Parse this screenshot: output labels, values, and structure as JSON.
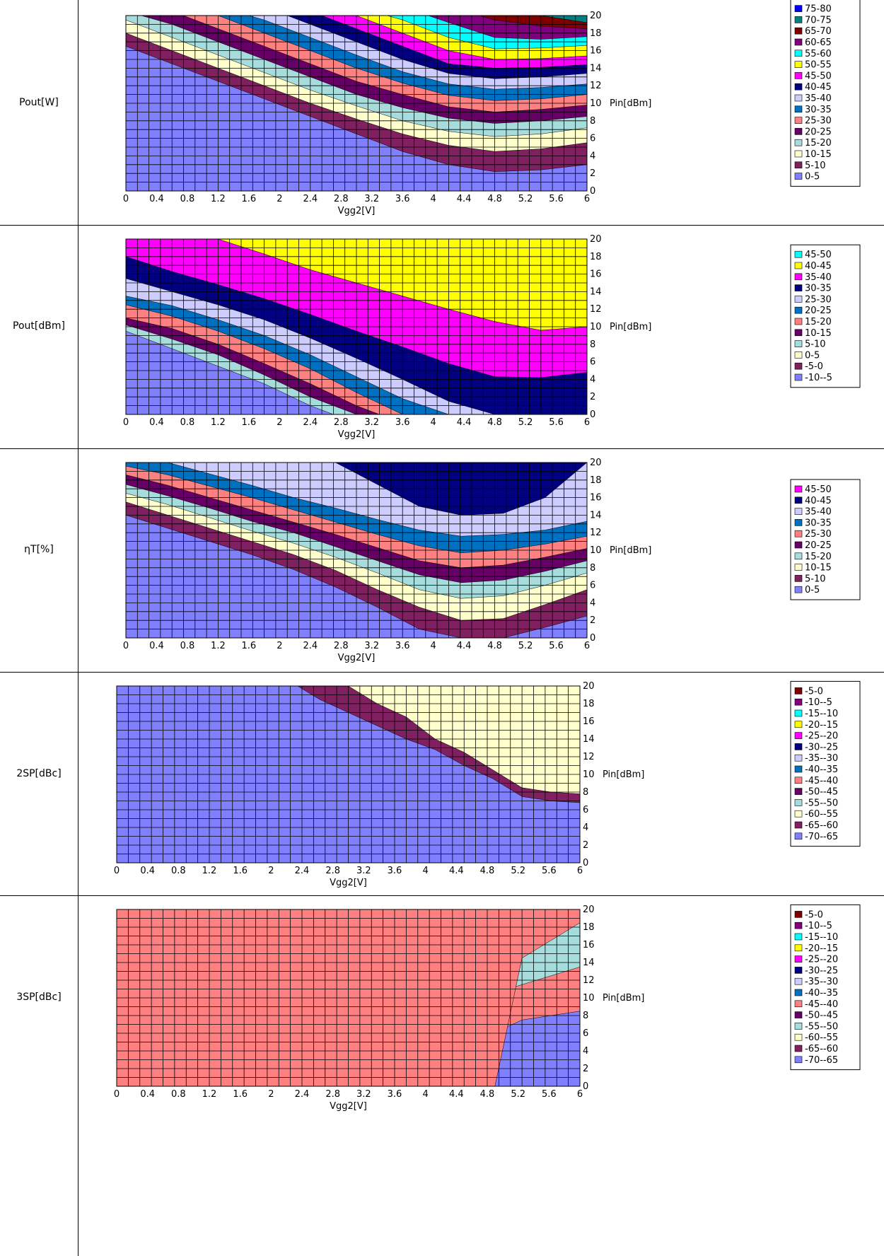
{
  "chart_data": [
    {
      "type": "heatmap",
      "row_label": "Pout[W]",
      "xlabel": "Vgg2[V]",
      "ylabel": "Pin[dBm]",
      "xlim": [
        0,
        6
      ],
      "ylim": [
        0,
        20
      ],
      "x_ticks": [
        "0",
        "0.4",
        "0.8",
        "1.2",
        "1.6",
        "2",
        "2.4",
        "2.8",
        "3.2",
        "3.6",
        "4",
        "4.4",
        "4.8",
        "5.2",
        "5.6",
        "6"
      ],
      "y_ticks": [
        "0",
        "2",
        "4",
        "6",
        "8",
        "10",
        "12",
        "14",
        "16",
        "18",
        "20"
      ],
      "legend": [
        {
          "label": "75-80",
          "color": "#0000ff"
        },
        {
          "label": "70-75",
          "color": "#008080"
        },
        {
          "label": "65-70",
          "color": "#800000"
        },
        {
          "label": "60-65",
          "color": "#800080"
        },
        {
          "label": "55-60",
          "color": "#00ffff"
        },
        {
          "label": "50-55",
          "color": "#ffff00"
        },
        {
          "label": "45-50",
          "color": "#ff00ff"
        },
        {
          "label": "40-45",
          "color": "#000080"
        },
        {
          "label": "35-40",
          "color": "#ccccff"
        },
        {
          "label": "30-35",
          "color": "#0070c0"
        },
        {
          "label": "25-30",
          "color": "#ff8080"
        },
        {
          "label": "20-25",
          "color": "#660066"
        },
        {
          "label": "15-20",
          "color": "#a6dcdc"
        },
        {
          "label": "10-15",
          "color": "#ffffcc"
        },
        {
          "label": "5-10",
          "color": "#802060"
        },
        {
          "label": "0-5",
          "color": "#8080ff"
        }
      ],
      "levels": [
        {
          "color": "#802060",
          "pin": [
            16.5,
            14.5,
            12.5,
            10.5,
            8.5,
            6.5,
            4.5,
            3.0,
            2.2,
            2.4,
            3.0
          ]
        },
        {
          "color": "#ffffcc",
          "pin": [
            18.0,
            16.0,
            14.0,
            12.0,
            10.0,
            8.2,
            6.5,
            5.2,
            4.5,
            4.8,
            5.5
          ]
        },
        {
          "color": "#a6dcdc",
          "pin": [
            19.5,
            17.5,
            15.5,
            13.5,
            11.5,
            9.7,
            8.0,
            6.8,
            6.2,
            6.5,
            7.2
          ]
        },
        {
          "color": "#660066",
          "pin": [
            20.5,
            19.0,
            17.0,
            15.0,
            13.0,
            11.0,
            9.5,
            8.3,
            7.7,
            8.0,
            8.5
          ]
        },
        {
          "color": "#ff8080",
          "pin": [
            21.0,
            20.5,
            18.5,
            16.5,
            14.5,
            12.5,
            11.0,
            9.6,
            9.0,
            9.3,
            9.8
          ]
        },
        {
          "color": "#0070c0",
          "pin": [
            21.0,
            21.0,
            20.0,
            18.0,
            16.0,
            14.0,
            12.3,
            10.9,
            10.3,
            10.5,
            11.0
          ]
        },
        {
          "color": "#ccccff",
          "pin": [
            21.0,
            21.0,
            21.0,
            19.5,
            17.5,
            15.5,
            13.6,
            12.2,
            11.6,
            11.8,
            12.2
          ]
        },
        {
          "color": "#000080",
          "pin": [
            21.0,
            21.0,
            21.0,
            21.0,
            19.0,
            17.0,
            15.0,
            13.4,
            12.8,
            13.0,
            13.4
          ]
        },
        {
          "color": "#ff00ff",
          "pin": [
            21.0,
            21.0,
            21.0,
            21.0,
            20.5,
            18.5,
            16.5,
            14.5,
            14.0,
            14.1,
            14.4
          ]
        },
        {
          "color": "#ffff00",
          "pin": [
            21.0,
            21.0,
            21.0,
            21.0,
            21.0,
            20.0,
            18.0,
            16.0,
            15.0,
            15.1,
            15.4
          ]
        },
        {
          "color": "#00ffff",
          "pin": [
            21.0,
            21.0,
            21.0,
            21.0,
            21.0,
            21.0,
            19.5,
            17.5,
            16.2,
            16.3,
            16.6
          ]
        },
        {
          "color": "#800080",
          "pin": [
            21.0,
            21.0,
            21.0,
            21.0,
            21.0,
            21.0,
            21.0,
            19.2,
            17.5,
            17.3,
            17.6
          ]
        },
        {
          "color": "#800000",
          "pin": [
            21.0,
            21.0,
            21.0,
            21.0,
            21.0,
            21.0,
            21.0,
            21.0,
            19.5,
            18.8,
            18.5
          ]
        },
        {
          "color": "#008080",
          "pin": [
            21.0,
            21.0,
            21.0,
            21.0,
            21.0,
            21.0,
            21.0,
            21.0,
            21.0,
            20.0,
            19.2
          ]
        }
      ]
    },
    {
      "type": "heatmap",
      "row_label": "Pout[dBm]",
      "xlabel": "Vgg2[V]",
      "ylabel": "Pin[dBm]",
      "xlim": [
        0,
        6
      ],
      "ylim": [
        0,
        20
      ],
      "x_ticks": [
        "0",
        "0.4",
        "0.8",
        "1.2",
        "1.6",
        "2",
        "2.4",
        "2.8",
        "3.2",
        "3.6",
        "4",
        "4.4",
        "4.8",
        "5.2",
        "5.6",
        "6"
      ],
      "y_ticks": [
        "0",
        "2",
        "4",
        "6",
        "8",
        "10",
        "12",
        "14",
        "16",
        "18",
        "20"
      ],
      "legend": [
        {
          "label": "45-50",
          "color": "#00ffff"
        },
        {
          "label": "40-45",
          "color": "#ffff00"
        },
        {
          "label": "35-40",
          "color": "#ff00ff"
        },
        {
          "label": "30-35",
          "color": "#000080"
        },
        {
          "label": "25-30",
          "color": "#ccccff"
        },
        {
          "label": "20-25",
          "color": "#0070c0"
        },
        {
          "label": "15-20",
          "color": "#ff8080"
        },
        {
          "label": "10-15",
          "color": "#660066"
        },
        {
          "label": "5-10",
          "color": "#a6dcdc"
        },
        {
          "label": "0-5",
          "color": "#ffffcc"
        },
        {
          "label": "-5-0",
          "color": "#802060"
        },
        {
          "label": "-10--5",
          "color": "#8080ff"
        }
      ],
      "levels": [
        {
          "color": "#a6dcdc",
          "pin": [
            9.5,
            7.5,
            5.5,
            3.5,
            1.0,
            -1.0,
            -1.0,
            -1.0,
            -1.0,
            -1.0,
            -1.0
          ]
        },
        {
          "color": "#660066",
          "pin": [
            10.2,
            8.6,
            6.8,
            4.5,
            2.0,
            0.0,
            -1.0,
            -1.0,
            -1.0,
            -1.0,
            -1.0
          ]
        },
        {
          "color": "#ff8080",
          "pin": [
            11.0,
            9.8,
            8.0,
            5.8,
            3.5,
            1.0,
            -1.0,
            -1.0,
            -1.0,
            -1.0,
            -1.0
          ]
        },
        {
          "color": "#0070c0",
          "pin": [
            12.5,
            11.2,
            9.5,
            7.5,
            5.2,
            2.5,
            0.0,
            -1.0,
            -1.0,
            -1.0,
            -1.0
          ]
        },
        {
          "color": "#ccccff",
          "pin": [
            13.5,
            12.4,
            10.8,
            9.0,
            6.8,
            4.3,
            1.8,
            0.0,
            -1.0,
            -1.0,
            -1.0
          ]
        },
        {
          "color": "#000080",
          "pin": [
            15.5,
            14.0,
            12.5,
            10.8,
            8.7,
            6.4,
            4.0,
            1.5,
            0.0,
            -1.0,
            -1.0
          ]
        },
        {
          "color": "#ff00ff",
          "pin": [
            18.0,
            16.3,
            14.8,
            13.2,
            11.4,
            9.5,
            7.7,
            5.8,
            4.3,
            4.2,
            4.8
          ]
        },
        {
          "color": "#ffff00",
          "pin": [
            21.0,
            21.0,
            20.0,
            18.3,
            16.5,
            15.0,
            13.5,
            12.0,
            10.6,
            9.6,
            10.0
          ]
        }
      ]
    },
    {
      "type": "heatmap",
      "row_label": "ηT[%]",
      "xlabel": "Vgg2[V]",
      "ylabel": "Pin[dBm]",
      "xlim": [
        0,
        6
      ],
      "ylim": [
        0,
        20
      ],
      "x_ticks": [
        "0",
        "0.4",
        "0.8",
        "1.2",
        "1.6",
        "2",
        "2.4",
        "2.8",
        "3.2",
        "3.6",
        "4",
        "4.4",
        "4.8",
        "5.2",
        "5.6",
        "6"
      ],
      "y_ticks": [
        "0",
        "2",
        "4",
        "6",
        "8",
        "10",
        "12",
        "14",
        "16",
        "18",
        "20"
      ],
      "legend": [
        {
          "label": "45-50",
          "color": "#ff00ff"
        },
        {
          "label": "40-45",
          "color": "#000080"
        },
        {
          "label": "35-40",
          "color": "#ccccff"
        },
        {
          "label": "30-35",
          "color": "#0070c0"
        },
        {
          "label": "25-30",
          "color": "#ff8080"
        },
        {
          "label": "20-25",
          "color": "#660066"
        },
        {
          "label": "15-20",
          "color": "#a6dcdc"
        },
        {
          "label": "10-15",
          "color": "#ffffcc"
        },
        {
          "label": "5-10",
          "color": "#802060"
        },
        {
          "label": "0-5",
          "color": "#8080ff"
        }
      ],
      "levels": [
        {
          "color": "#802060",
          "pin": [
            14.0,
            12.5,
            11.0,
            9.5,
            7.8,
            5.8,
            3.5,
            1.0,
            0.0,
            0.0,
            1.2,
            2.5
          ]
        },
        {
          "color": "#ffffcc",
          "pin": [
            15.5,
            14.0,
            12.5,
            11.0,
            9.5,
            7.7,
            5.5,
            3.5,
            2.0,
            2.2,
            3.8,
            5.5
          ]
        },
        {
          "color": "#a6dcdc",
          "pin": [
            16.5,
            15.2,
            13.7,
            12.2,
            10.8,
            9.2,
            7.4,
            5.5,
            4.5,
            4.8,
            6.0,
            7.4
          ]
        },
        {
          "color": "#660066",
          "pin": [
            17.5,
            16.2,
            14.8,
            13.3,
            12.0,
            10.4,
            8.8,
            7.2,
            6.3,
            6.6,
            7.6,
            8.8
          ]
        },
        {
          "color": "#ff8080",
          "pin": [
            18.6,
            17.4,
            16.0,
            14.6,
            13.2,
            11.8,
            10.3,
            8.8,
            8.0,
            8.3,
            9.2,
            10.2
          ]
        },
        {
          "color": "#0070c0",
          "pin": [
            19.6,
            18.6,
            17.3,
            16.0,
            14.6,
            13.2,
            11.8,
            10.5,
            9.7,
            10.0,
            10.7,
            11.6
          ]
        },
        {
          "color": "#ccccff",
          "pin": [
            21.0,
            20.0,
            18.7,
            17.4,
            16.0,
            14.8,
            13.5,
            12.3,
            11.6,
            11.8,
            12.3,
            13.3
          ]
        },
        {
          "color": "#000080",
          "pin": [
            21.0,
            21.0,
            21.0,
            21.0,
            21.0,
            20.0,
            17.5,
            15.0,
            14.0,
            14.2,
            16.0,
            20.0
          ]
        }
      ]
    },
    {
      "type": "heatmap",
      "row_label": "2SP[dBc]",
      "xlabel": "Vgg2[V]",
      "ylabel": "Pin[dBm]",
      "xlim": [
        0,
        6
      ],
      "ylim": [
        0,
        20
      ],
      "x_ticks": [
        "0",
        "0.4",
        "0.8",
        "1.2",
        "1.6",
        "2",
        "2.4",
        "2.8",
        "3.2",
        "3.6",
        "4",
        "4.4",
        "4.8",
        "5.2",
        "5.6",
        "6"
      ],
      "y_ticks": [
        "0",
        "2",
        "4",
        "6",
        "8",
        "10",
        "12",
        "14",
        "16",
        "18",
        "20"
      ],
      "legend": [
        {
          "label": "-5-0",
          "color": "#800000"
        },
        {
          "label": "-10--5",
          "color": "#800080"
        },
        {
          "label": "-15--10",
          "color": "#00ffff"
        },
        {
          "label": "-20--15",
          "color": "#ffff00"
        },
        {
          "label": "-25--20",
          "color": "#ff00ff"
        },
        {
          "label": "-30--25",
          "color": "#000080"
        },
        {
          "label": "-35--30",
          "color": "#ccccff"
        },
        {
          "label": "-40--35",
          "color": "#0070c0"
        },
        {
          "label": "-45--40",
          "color": "#ff8080"
        },
        {
          "label": "-50--45",
          "color": "#660066"
        },
        {
          "label": "-55--50",
          "color": "#a6dcdc"
        },
        {
          "label": "-60--55",
          "color": "#ffffcc"
        },
        {
          "label": "-65--60",
          "color": "#802060"
        },
        {
          "label": "-70--65",
          "color": "#8080ff"
        }
      ],
      "levels": [
        {
          "color": "#802060",
          "pin": [
            21.0,
            21.0,
            21.0,
            21.0,
            21.0,
            21.0,
            20.5,
            18.5,
            17.0,
            15.5,
            14.0,
            12.8,
            11.0,
            9.5,
            7.5,
            7.0,
            6.8
          ]
        },
        {
          "color": "#ffffcc",
          "pin": [
            21.0,
            21.0,
            21.0,
            21.0,
            21.0,
            21.0,
            21.0,
            21.0,
            20.0,
            18.0,
            16.5,
            14.0,
            12.5,
            10.5,
            8.5,
            8.0,
            7.8
          ]
        }
      ]
    },
    {
      "type": "heatmap",
      "row_label": "3SP[dBc]",
      "xlabel": "Vgg2[V]",
      "ylabel": "Pin[dBm]",
      "xlim": [
        0,
        6
      ],
      "ylim": [
        0,
        20
      ],
      "x_ticks": [
        "0",
        "0.4",
        "0.8",
        "1.2",
        "1.6",
        "2",
        "2.4",
        "2.8",
        "3.2",
        "3.6",
        "4",
        "4.4",
        "4.8",
        "5.2",
        "5.6",
        "6"
      ],
      "y_ticks": [
        "0",
        "2",
        "4",
        "6",
        "8",
        "10",
        "12",
        "14",
        "16",
        "18",
        "20"
      ],
      "legend": [
        {
          "label": "-5-0",
          "color": "#800000"
        },
        {
          "label": "-10--5",
          "color": "#800080"
        },
        {
          "label": "-15--10",
          "color": "#00ffff"
        },
        {
          "label": "-20--15",
          "color": "#ffff00"
        },
        {
          "label": "-25--20",
          "color": "#ff00ff"
        },
        {
          "label": "-30--25",
          "color": "#000080"
        },
        {
          "label": "-35--30",
          "color": "#ccccff"
        },
        {
          "label": "-40--35",
          "color": "#0070c0"
        },
        {
          "label": "-45--40",
          "color": "#ff8080"
        },
        {
          "label": "-50--45",
          "color": "#660066"
        },
        {
          "label": "-55--50",
          "color": "#a6dcdc"
        },
        {
          "label": "-60--55",
          "color": "#ffffcc"
        },
        {
          "label": "-65--60",
          "color": "#802060"
        },
        {
          "label": "-70--65",
          "color": "#8080ff"
        }
      ],
      "levels": [
        {
          "color": "#ff8080",
          "pin": [
            9.5,
            8.5,
            7.0,
            5.5,
            4.5,
            3.8,
            3.0,
            2.0,
            1.0,
            0.0,
            5.0,
            4.5,
            4.0,
            6.0,
            7.5,
            8.0,
            8.5
          ]
        },
        {
          "color": "#660066",
          "pin": [
            21.0,
            21.0,
            21.0,
            21.0,
            17.0,
            14.5,
            11.0,
            7.0,
            4.0,
            2.0,
            8.0,
            9.0,
            9.5,
            11.0,
            12.0,
            13.0,
            14.0
          ]
        },
        {
          "color": "#a6dcdc",
          "pin": [
            -1.0,
            -1.0,
            -1.0,
            -1.0,
            -1.0,
            -1.0,
            -1.0,
            12.0,
            10.5,
            8.0,
            8.0,
            9.0,
            9.5,
            10.5,
            11.5,
            12.5,
            13.5
          ]
        },
        {
          "color": "#ff8080",
          "pin": [
            -1.0,
            -1.0,
            -1.0,
            -1.0,
            -1.0,
            -1.0,
            -1.0,
            -1.0,
            -1.0,
            -1.0,
            -1.0,
            -1.0,
            -1.0,
            -1.0,
            14.5,
            16.5,
            18.5
          ]
        }
      ]
    }
  ]
}
